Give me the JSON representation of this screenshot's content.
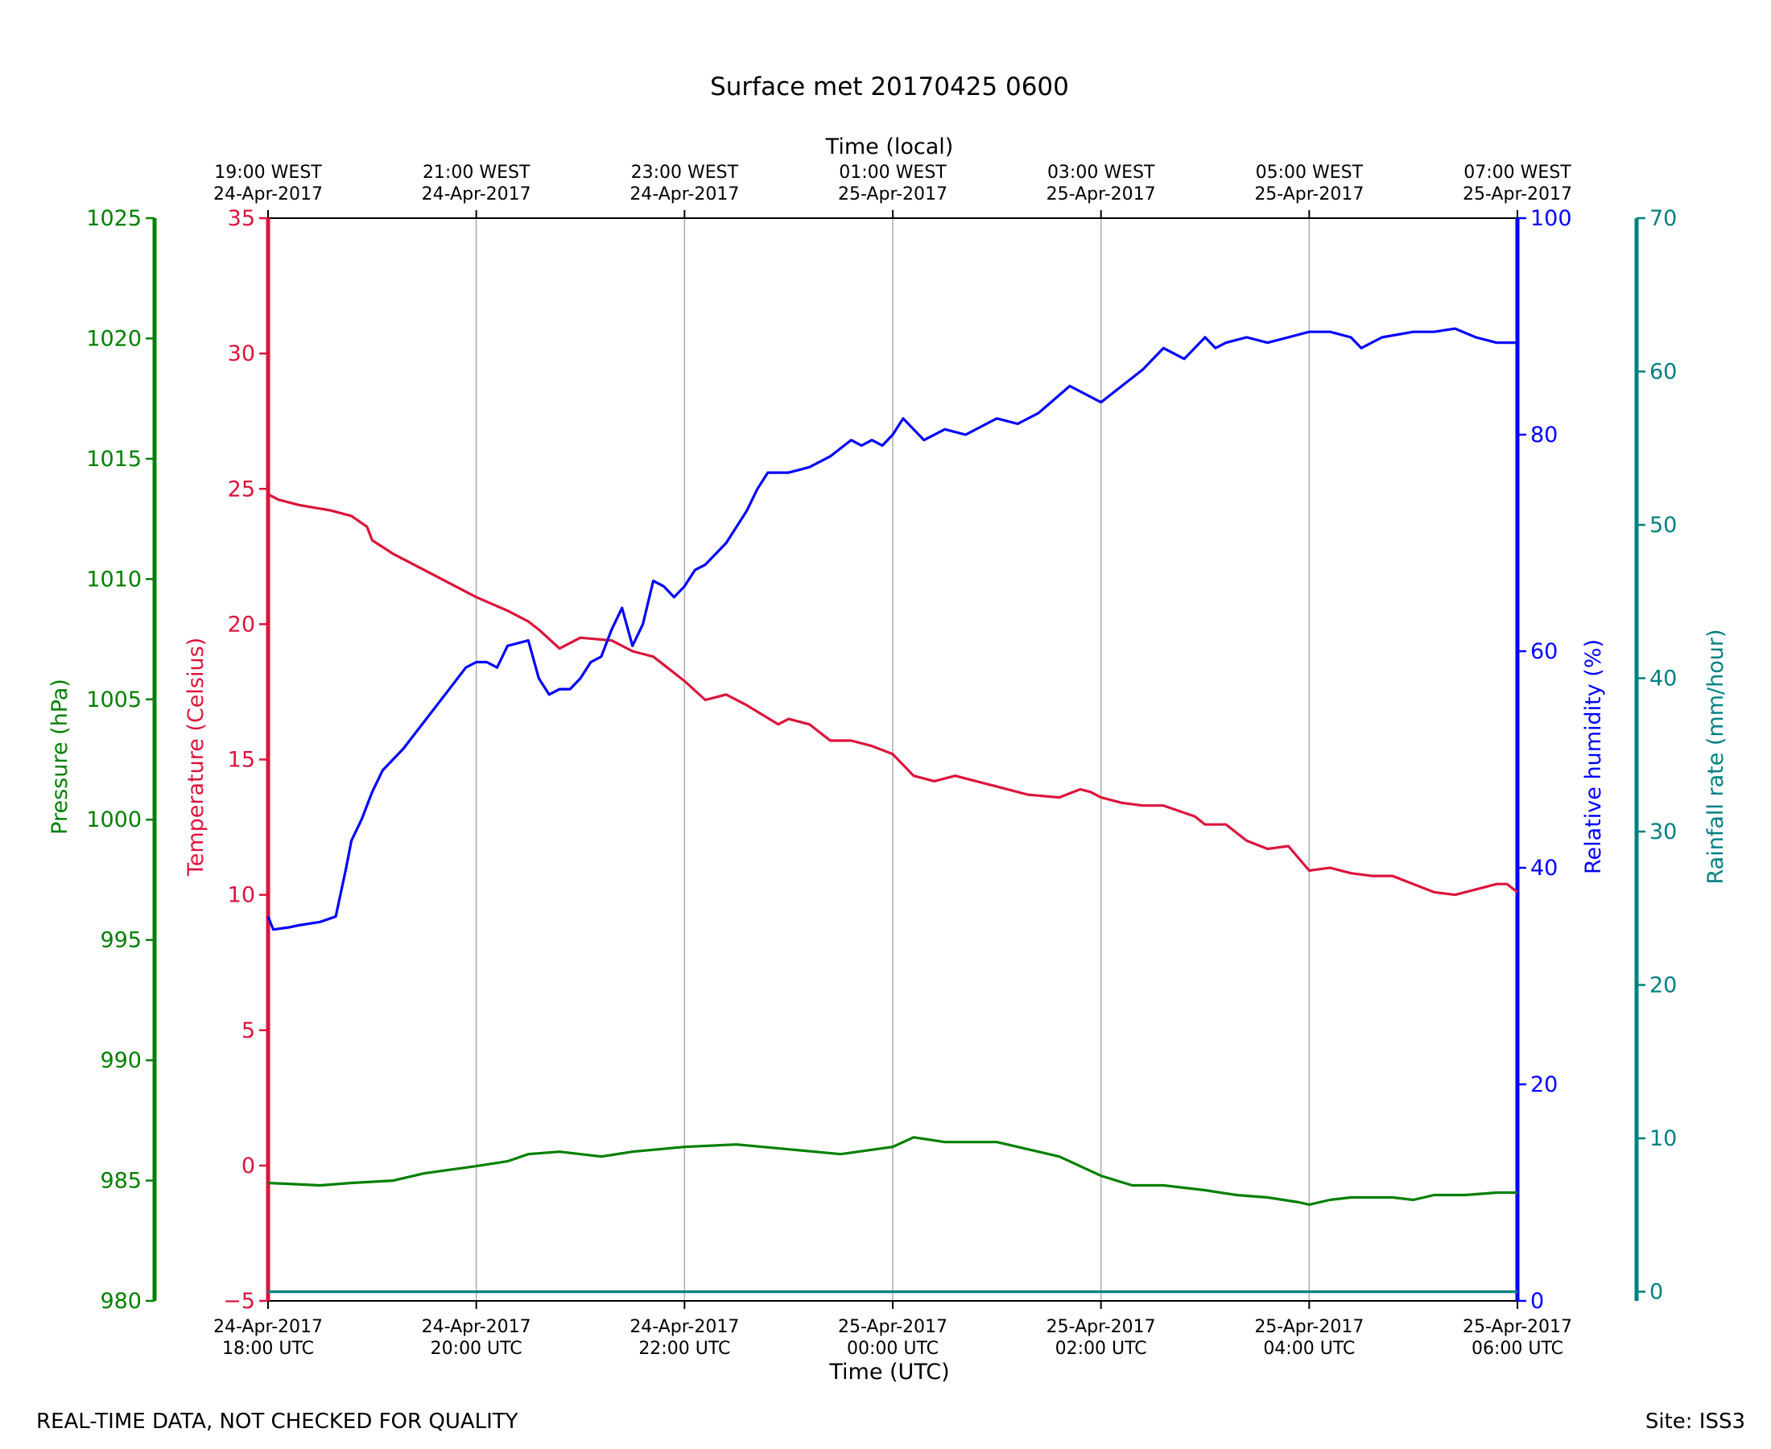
{
  "chart_data": {
    "type": "line",
    "title": "Surface met 20170425 0600",
    "xlabel_bottom": "Time (UTC)",
    "xlabel_top": "Time (local)",
    "x_range_utc_hours": [
      18,
      30
    ],
    "x_ticks_bottom": [
      {
        "hour": 18,
        "line1": "24-Apr-2017",
        "line2": "18:00 UTC"
      },
      {
        "hour": 20,
        "line1": "24-Apr-2017",
        "line2": "20:00 UTC"
      },
      {
        "hour": 22,
        "line1": "24-Apr-2017",
        "line2": "22:00 UTC"
      },
      {
        "hour": 24,
        "line1": "25-Apr-2017",
        "line2": "00:00 UTC"
      },
      {
        "hour": 26,
        "line1": "25-Apr-2017",
        "line2": "02:00 UTC"
      },
      {
        "hour": 28,
        "line1": "25-Apr-2017",
        "line2": "04:00 UTC"
      },
      {
        "hour": 30,
        "line1": "25-Apr-2017",
        "line2": "06:00 UTC"
      }
    ],
    "x_ticks_top": [
      {
        "hour": 18,
        "line1": "19:00 WEST",
        "line2": "24-Apr-2017"
      },
      {
        "hour": 20,
        "line1": "21:00 WEST",
        "line2": "24-Apr-2017"
      },
      {
        "hour": 22,
        "line1": "23:00 WEST",
        "line2": "24-Apr-2017"
      },
      {
        "hour": 24,
        "line1": "01:00 WEST",
        "line2": "25-Apr-2017"
      },
      {
        "hour": 26,
        "line1": "03:00 WEST",
        "line2": "25-Apr-2017"
      },
      {
        "hour": 28,
        "line1": "05:00 WEST",
        "line2": "25-Apr-2017"
      },
      {
        "hour": 30,
        "line1": "07:00 WEST",
        "line2": "25-Apr-2017"
      }
    ],
    "vertical_grid": true,
    "axes": {
      "pressure": {
        "label": "Pressure (hPa)",
        "range": [
          980,
          1025
        ],
        "ticks": [
          980,
          985,
          990,
          995,
          1000,
          1005,
          1010,
          1015,
          1020,
          1025
        ],
        "color": "#008000"
      },
      "temperature": {
        "label": "Temperature (Celsius)",
        "range": [
          -5,
          35
        ],
        "ticks": [
          -5,
          0,
          5,
          10,
          15,
          20,
          25,
          30,
          35
        ],
        "tick_labels": [
          "−5",
          "0",
          "5",
          "10",
          "15",
          "20",
          "25",
          "30",
          "35"
        ],
        "color": "#dc143c"
      },
      "humidity": {
        "label": "Relative humidity (%)",
        "range": [
          0,
          100
        ],
        "ticks": [
          0,
          20,
          40,
          60,
          80,
          100
        ],
        "color": "#0000ff"
      },
      "rainfall": {
        "label": "Rainfall rate (mm/hour)",
        "range": [
          -0.6,
          70
        ],
        "ticks": [
          0,
          10,
          20,
          30,
          40,
          50,
          60,
          70
        ],
        "color": "#008080"
      }
    },
    "series": [
      {
        "axis": "temperature",
        "color": "#dc143c",
        "x": [
          18.0,
          18.1,
          18.3,
          18.6,
          18.8,
          18.95,
          19.0,
          19.2,
          19.5,
          19.8,
          20.0,
          20.3,
          20.5,
          20.6,
          20.8,
          21.0,
          21.3,
          21.5,
          21.7,
          21.8,
          22.0,
          22.2,
          22.4,
          22.6,
          22.9,
          23.0,
          23.2,
          23.4,
          23.6,
          23.8,
          24.0,
          24.2,
          24.4,
          24.6,
          24.8,
          25.0,
          25.3,
          25.6,
          25.8,
          25.9,
          26.0,
          26.2,
          26.4,
          26.6,
          26.9,
          27.0,
          27.2,
          27.4,
          27.6,
          27.8,
          28.0,
          28.2,
          28.4,
          28.6,
          28.8,
          29.0,
          29.2,
          29.4,
          29.6,
          29.8,
          29.9,
          30.0
        ],
        "y": [
          24.8,
          24.6,
          24.4,
          24.2,
          24.0,
          23.6,
          23.1,
          22.6,
          22.0,
          21.4,
          21.0,
          20.5,
          20.1,
          19.8,
          19.1,
          19.5,
          19.4,
          19.0,
          18.8,
          18.5,
          17.9,
          17.2,
          17.4,
          17.0,
          16.3,
          16.5,
          16.3,
          15.7,
          15.7,
          15.5,
          15.2,
          14.4,
          14.2,
          14.4,
          14.2,
          14.0,
          13.7,
          13.6,
          13.9,
          13.8,
          13.6,
          13.4,
          13.3,
          13.3,
          12.9,
          12.6,
          12.6,
          12.0,
          11.7,
          11.8,
          10.9,
          11.0,
          10.8,
          10.7,
          10.7,
          10.4,
          10.1,
          10.0,
          10.2,
          10.4,
          10.4,
          10.1
        ]
      },
      {
        "axis": "humidity",
        "color": "#0000ff",
        "x": [
          18.0,
          18.05,
          18.2,
          18.3,
          18.5,
          18.65,
          18.75,
          18.8,
          18.9,
          19.0,
          19.1,
          19.3,
          19.5,
          19.7,
          19.9,
          20.0,
          20.1,
          20.2,
          20.3,
          20.5,
          20.6,
          20.7,
          20.8,
          20.9,
          21.0,
          21.1,
          21.2,
          21.3,
          21.4,
          21.5,
          21.6,
          21.7,
          21.8,
          21.9,
          22.0,
          22.1,
          22.2,
          22.3,
          22.4,
          22.5,
          22.6,
          22.7,
          22.8,
          23.0,
          23.2,
          23.4,
          23.6,
          23.7,
          23.8,
          23.9,
          24.0,
          24.1,
          24.3,
          24.5,
          24.7,
          24.9,
          25.0,
          25.2,
          25.4,
          25.7,
          25.9,
          26.0,
          26.2,
          26.4,
          26.6,
          26.8,
          27.0,
          27.1,
          27.2,
          27.4,
          27.6,
          27.8,
          28.0,
          28.2,
          28.4,
          28.5,
          28.7,
          29.0,
          29.2,
          29.4,
          29.6,
          29.8,
          30.0
        ],
        "y": [
          35.5,
          34.3,
          34.5,
          34.7,
          35.0,
          35.5,
          40.0,
          42.5,
          44.5,
          47.0,
          49.0,
          51.0,
          53.5,
          56.0,
          58.5,
          59.0,
          59.0,
          58.5,
          60.5,
          61.0,
          57.5,
          56.0,
          56.5,
          56.5,
          57.5,
          59.0,
          59.5,
          62.0,
          64.0,
          60.5,
          62.5,
          66.5,
          66.0,
          65.0,
          66.0,
          67.5,
          68.0,
          69.0,
          70.0,
          71.5,
          73.0,
          75.0,
          76.5,
          76.5,
          77.0,
          78.0,
          79.5,
          79.0,
          79.5,
          79.0,
          80.0,
          81.5,
          79.5,
          80.5,
          80.0,
          81.0,
          81.5,
          81.0,
          82.0,
          84.5,
          83.5,
          83.0,
          84.5,
          86.0,
          88.0,
          87.0,
          89.0,
          88.0,
          88.5,
          89.0,
          88.5,
          89.0,
          89.5,
          89.5,
          89.0,
          88.0,
          89.0,
          89.5,
          89.5,
          89.8,
          89.0,
          88.5,
          88.5
        ]
      },
      {
        "axis": "pressure",
        "color": "#008000",
        "x": [
          18.0,
          18.5,
          18.8,
          19.2,
          19.5,
          20.0,
          20.3,
          20.5,
          20.8,
          21.2,
          21.5,
          22.0,
          22.5,
          23.0,
          23.5,
          24.0,
          24.2,
          24.5,
          25.0,
          25.3,
          25.6,
          25.9,
          26.0,
          26.3,
          26.6,
          27.0,
          27.3,
          27.6,
          27.9,
          28.0,
          28.2,
          28.4,
          28.8,
          29.0,
          29.2,
          29.5,
          29.8,
          30.0
        ],
        "y": [
          984.9,
          984.8,
          984.9,
          985.0,
          985.3,
          985.6,
          985.8,
          986.1,
          986.2,
          986.0,
          986.2,
          986.4,
          986.5,
          986.3,
          986.1,
          986.4,
          986.8,
          986.6,
          986.6,
          986.3,
          986.0,
          985.4,
          985.2,
          984.8,
          984.8,
          984.6,
          984.4,
          984.3,
          984.1,
          984.0,
          984.2,
          984.3,
          984.3,
          984.2,
          984.4,
          984.4,
          984.5,
          984.5
        ]
      },
      {
        "axis": "rainfall",
        "color": "#008080",
        "x": [
          18.0,
          30.0
        ],
        "y": [
          0,
          0
        ]
      }
    ]
  },
  "footer": {
    "left": "REAL-TIME DATA, NOT CHECKED FOR QUALITY",
    "right": "Site: ISS3"
  }
}
